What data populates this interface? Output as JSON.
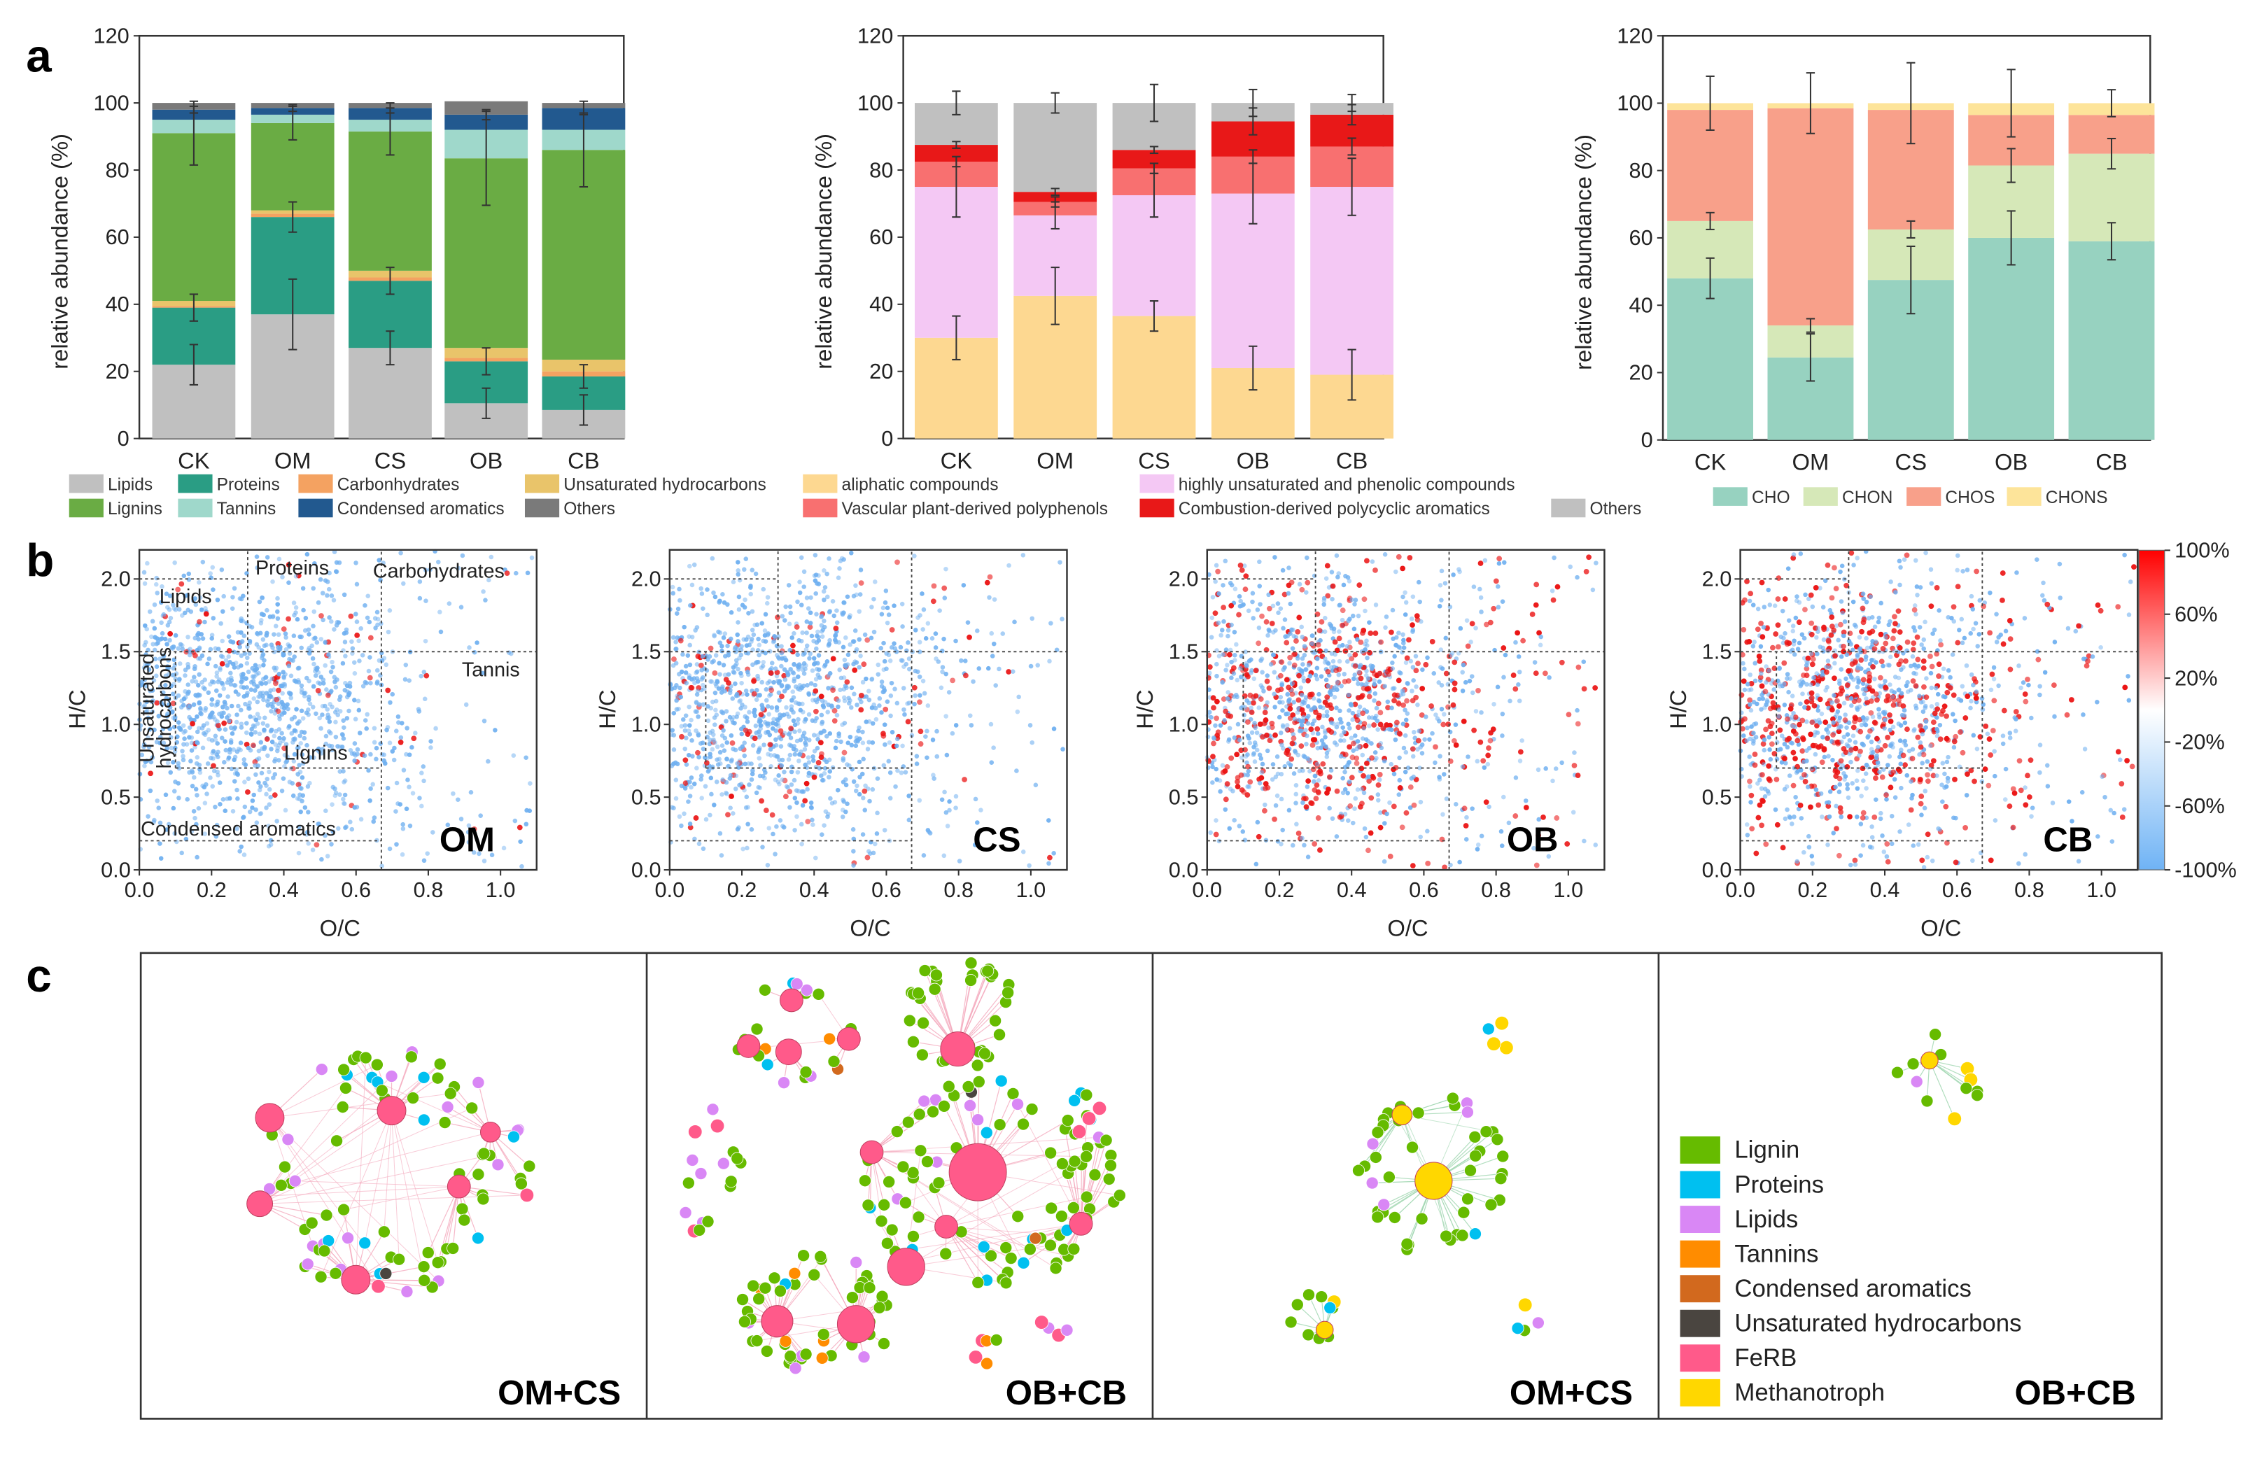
{
  "panel_letters": [
    "a",
    "b",
    "c"
  ],
  "chart_data": [
    {
      "type": "bar",
      "stacked": true,
      "panel_label": "a",
      "categories": [
        "CK",
        "OM",
        "CS",
        "OB",
        "CB"
      ],
      "ylabel": "relative abundance (%)",
      "ylim": [
        0,
        120
      ],
      "yticks": [
        "0",
        "20",
        "40",
        "60",
        "80",
        "100",
        "120"
      ],
      "legend_position": "bottom",
      "series": [
        {
          "name": "Lipids",
          "color": "#c0c0c0",
          "values": [
            22,
            37,
            27,
            10.5,
            8.5
          ],
          "error": [
            6,
            10.5,
            5,
            4.5,
            4.5
          ]
        },
        {
          "name": "Proteins",
          "color": "#2a9d84",
          "values": [
            17,
            29,
            20,
            12.5,
            10
          ],
          "error": [
            4,
            4.5,
            4,
            4,
            3.5
          ]
        },
        {
          "name": "Carbonhydrates",
          "color": "#f4a261",
          "values": [
            0.5,
            1,
            1,
            1,
            1.5
          ],
          "error": [
            0,
            0,
            0,
            0,
            0
          ]
        },
        {
          "name": "Unsaturated hydrocarbons",
          "color": "#e9c46a",
          "values": [
            1.5,
            1,
            2,
            3,
            3.5
          ],
          "error": [
            0,
            0,
            0,
            0,
            0
          ]
        },
        {
          "name": "Lignins",
          "color": "#6aac44",
          "values": [
            50,
            26,
            41.5,
            56.5,
            62.5
          ],
          "error": [
            9.5,
            5,
            7,
            14,
            11
          ]
        },
        {
          "name": "Tannins",
          "color": "#9fd8cb",
          "values": [
            4,
            2.5,
            3.5,
            8.5,
            6
          ],
          "error": [
            0,
            0,
            0,
            0,
            0
          ]
        },
        {
          "name": "Condensed aromatics",
          "color": "#22598f",
          "values": [
            3,
            2,
            3.5,
            4.5,
            6.5
          ],
          "error": [
            1,
            1,
            1.5,
            1.5,
            2
          ]
        },
        {
          "name": "Others",
          "color": "#7a7a7a",
          "values": [
            2,
            1.5,
            1.5,
            4,
            1.5
          ],
          "error": [
            0,
            0,
            0,
            0,
            0
          ]
        }
      ]
    },
    {
      "type": "bar",
      "stacked": true,
      "categories": [
        "CK",
        "OM",
        "CS",
        "OB",
        "CB"
      ],
      "ylabel": "relative abundance (%)",
      "ylim": [
        0,
        120
      ],
      "yticks": [
        "0",
        "20",
        "40",
        "60",
        "80",
        "100",
        "120"
      ],
      "legend_position": "bottom",
      "series": [
        {
          "name": "aliphatic compounds",
          "color": "#fdd891",
          "values": [
            30,
            42.5,
            36.5,
            21,
            19
          ],
          "error": [
            6.5,
            8.5,
            4.5,
            6.5,
            7.5
          ]
        },
        {
          "name": "highly unsaturated and phenolic compounds",
          "color": "#f4c8f4",
          "values": [
            45,
            24,
            36,
            52,
            56
          ],
          "error": [
            9,
            4,
            6.5,
            9,
            8.5
          ]
        },
        {
          "name": "Vascular plant-derived polyphenols",
          "color": "#f87070",
          "values": [
            7.5,
            4,
            8,
            11,
            12
          ],
          "error": [
            1.5,
            1.5,
            1.5,
            2,
            2.5
          ]
        },
        {
          "name": "Combustion-derived polycyclic aromatics",
          "color": "#e81818",
          "values": [
            5,
            3,
            5.5,
            10.5,
            9.5
          ],
          "error": [
            1,
            1,
            1,
            4,
            3
          ]
        },
        {
          "name": "Others",
          "color": "#c0c0c0",
          "values": [
            12.5,
            26.5,
            14,
            5.5,
            3.5
          ],
          "error": [
            3.5,
            3,
            5.5,
            4,
            2.5
          ]
        }
      ]
    },
    {
      "type": "bar",
      "stacked": true,
      "categories": [
        "CK",
        "OM",
        "CS",
        "OB",
        "CB"
      ],
      "ylabel": "relative abundance (%)",
      "ylim": [
        0,
        120
      ],
      "yticks": [
        "0",
        "20",
        "40",
        "60",
        "80",
        "100",
        "120"
      ],
      "legend_position": "bottom",
      "series": [
        {
          "name": "CHO",
          "color": "#97d2c0",
          "values": [
            48,
            24.5,
            47.5,
            60,
            59
          ],
          "error": [
            6,
            7,
            10,
            8,
            5.5
          ]
        },
        {
          "name": "CHON",
          "color": "#d6e8b8",
          "values": [
            17,
            9.5,
            15,
            21.5,
            26
          ],
          "error": [
            2.5,
            2,
            2.5,
            5,
            4.5
          ]
        },
        {
          "name": "CHOS",
          "color": "#f8a08a",
          "values": [
            33,
            64.5,
            35.5,
            15,
            11.5
          ],
          "error": [
            0,
            0,
            0,
            0,
            0
          ]
        },
        {
          "name": "CHONS",
          "color": "#fde49a",
          "values": [
            2,
            1.5,
            2,
            3.5,
            3.5
          ],
          "error": [
            8,
            9,
            12,
            10,
            4
          ]
        }
      ]
    },
    {
      "type": "scatter",
      "panel_label": "b",
      "xlabel": "O/C",
      "ylabel": "H/C",
      "xlim": [
        0,
        1.1
      ],
      "ylim": [
        0,
        2.2
      ],
      "xticks": [
        "0.0",
        "0.2",
        "0.4",
        "0.6",
        "0.8",
        "1.0"
      ],
      "yticks": [
        "0.0",
        "0.5",
        "1.0",
        "1.5",
        "2.0"
      ],
      "grid": false,
      "boundaries_dashed": [
        {
          "oc": [
            0,
            0.3
          ],
          "hc": [
            2.0,
            2.0
          ]
        },
        {
          "oc": [
            0,
            1.1
          ],
          "hc": [
            1.5,
            1.5
          ]
        },
        {
          "oc": [
            0.1,
            0.67
          ],
          "hc": [
            0.7,
            0.7
          ]
        },
        {
          "oc": [
            0,
            0.67
          ],
          "hc": [
            0.2,
            0.2
          ]
        },
        {
          "oc": [
            0.3,
            0.3
          ],
          "hc": [
            1.5,
            2.2
          ]
        },
        {
          "oc": [
            0.67,
            0.67
          ],
          "hc": [
            0,
            2.2
          ]
        },
        {
          "oc": [
            0.1,
            0.1
          ],
          "hc": [
            0.7,
            1.5
          ]
        }
      ],
      "region_labels": {
        "lipids": "Lipids",
        "proteins": "Proteins",
        "carbohydrates": "Carbohydrates",
        "tannins": "Tannis",
        "lignins": "Lignins",
        "condensed": "Condensed aromatics",
        "unsaturated": [
          "Unsaturated",
          "hydrocarbons"
        ]
      },
      "plots": [
        {
          "label": "OM",
          "increased_share": 0.04
        },
        {
          "label": "CS",
          "increased_share": 0.1
        },
        {
          "label": "OB",
          "increased_share": 0.33
        },
        {
          "label": "CB",
          "increased_share": 0.4
        }
      ],
      "colorbar": {
        "labels": [
          "100%",
          "60%",
          "20%",
          "-20%",
          "-60%",
          "-100%"
        ],
        "range": [
          -100,
          100
        ],
        "colors": [
          "#ff0000",
          "#ffffff",
          "#6fb3f5"
        ]
      }
    },
    {
      "type": "network",
      "panel_label": "c",
      "legend": [
        {
          "name": "Lignin",
          "color": "#66bb00"
        },
        {
          "name": "Proteins",
          "color": "#00c0f0"
        },
        {
          "name": "Lipids",
          "color": "#d987f5"
        },
        {
          "name": "Tannins",
          "color": "#ff8c00"
        },
        {
          "name": "Condensed aromatics",
          "color": "#d2691e"
        },
        {
          "name": "Unsaturated hydrocarbons",
          "color": "#4a4540"
        },
        {
          "name": "FeRB",
          "color": "#ff5a8a"
        },
        {
          "name": "Methanotroph",
          "color": "#ffd700"
        }
      ],
      "panels": [
        {
          "label": "OM+CS",
          "clusters": [
            {
              "hubs": [
                "FeRB",
                "FeRB",
                "FeRB",
                "FeRB",
                "FeRB",
                "FeRB"
              ],
              "members": {
                "Lignin": 55,
                "Lipids": 18,
                "Proteins": 10,
                "Unsaturated hydrocarbons": 1,
                "FeRB": 2
              }
            }
          ]
        },
        {
          "label": "OB+CB",
          "clusters": [
            {
              "hubs": [
                "FeRB",
                "FeRB",
                "FeRB",
                "FeRB"
              ],
              "members": {
                "Lignin": 12,
                "Lipids": 4,
                "Proteins": 2,
                "Tannins": 2,
                "Condensed aromatics": 1
              }
            },
            {
              "hubs": [
                "FeRB"
              ],
              "members": {
                "Lignin": 35
              }
            },
            {
              "hubs": [
                "FeRB",
                "FeRB",
                "FeRB",
                "FeRB",
                "FeRB"
              ],
              "members": {
                "Lignin": 80,
                "Proteins": 10,
                "Lipids": 8,
                "Condensed aromatics": 1,
                "Unsaturated hydrocarbons": 1
              }
            },
            {
              "hubs": [
                "FeRB",
                "FeRB"
              ],
              "members": {
                "Lignin": 40,
                "Tannins": 5,
                "Lipids": 5,
                "Proteins": 1
              }
            },
            {
              "hubs": [],
              "members": {
                "Lignin": 8,
                "Lipids": 6,
                "FeRB": 3
              }
            },
            {
              "hubs": [],
              "members": {
                "FeRB": 3,
                "Proteins": 3,
                "Lignin": 2
              }
            },
            {
              "hubs": [],
              "members": {
                "Tannins": 2,
                "FeRB": 2,
                "Lignin": 1
              }
            },
            {
              "hubs": [],
              "members": {
                "Lipids": 2,
                "FeRB": 2
              }
            }
          ]
        },
        {
          "label": "OM+CS",
          "clusters": [
            {
              "hubs": [
                "Methanotroph",
                "Methanotroph"
              ],
              "members": {
                "Lignin": 40,
                "Lipids": 5,
                "Proteins": 1
              }
            },
            {
              "hubs": [],
              "members": {
                "Methanotroph": 3,
                "Proteins": 1
              }
            },
            {
              "hubs": [
                "Methanotroph"
              ],
              "members": {
                "Lignin": 8,
                "Proteins": 1,
                "Methanotroph": 1
              }
            },
            {
              "hubs": [],
              "members": {
                "Methanotroph": 1,
                "Proteins": 1,
                "Lipids": 1,
                "Lignin": 1
              }
            }
          ]
        },
        {
          "label": "OB+CB",
          "clusters": [
            {
              "hubs": [
                "Methanotroph"
              ],
              "members": {
                "Lignin": 8,
                "Methanotroph": 3,
                "Lipids": 1
              }
            }
          ]
        }
      ]
    }
  ]
}
